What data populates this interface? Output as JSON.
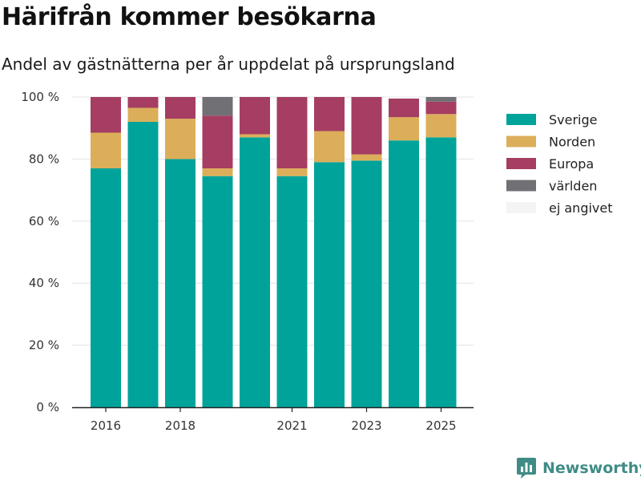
{
  "header": {
    "title": "Härifrån kommer besökarna",
    "subtitle": "Andel av gästnätterna per år uppdelat på ursprungsland"
  },
  "brand": {
    "name": "Newsworthy",
    "icon": "bar-chart-speech-bubble-icon"
  },
  "chart_data": {
    "type": "bar",
    "stacked": true,
    "categories": [
      "2016",
      "2017",
      "2018",
      "2019",
      "2020",
      "2021",
      "2022",
      "2023",
      "2024",
      "2025"
    ],
    "x_tick_labels": [
      "2016",
      "2018",
      "2021",
      "2023",
      "2025"
    ],
    "series": [
      {
        "name": "Sverige",
        "color": "#00a39a",
        "values": [
          77,
          92,
          80,
          74.5,
          87,
          74.5,
          79,
          79.5,
          86,
          87
        ]
      },
      {
        "name": "Norden",
        "color": "#dcae5a",
        "values": [
          11.5,
          4.5,
          13,
          2.5,
          1,
          2.5,
          10,
          2,
          7.5,
          7.5
        ]
      },
      {
        "name": "Europa",
        "color": "#a53e62",
        "values": [
          11.5,
          3.5,
          7,
          17,
          12,
          23,
          11,
          18.5,
          6,
          4
        ]
      },
      {
        "name": "världen",
        "color": "#707075",
        "values": [
          0,
          0,
          0,
          6,
          0,
          0,
          0,
          0,
          0,
          1.5
        ]
      },
      {
        "name": "ej angivet",
        "color": "#f4f4f4",
        "values": [
          0,
          0,
          0,
          0,
          0,
          0,
          0,
          0,
          0.5,
          0
        ]
      }
    ],
    "y_ticks": [
      0,
      20,
      40,
      60,
      80,
      100
    ],
    "y_tick_labels": [
      "0 %",
      "20 %",
      "40 %",
      "60 %",
      "80 %",
      "100 %"
    ],
    "ylim": [
      0,
      100
    ],
    "grid": true,
    "legend_position": "right"
  }
}
